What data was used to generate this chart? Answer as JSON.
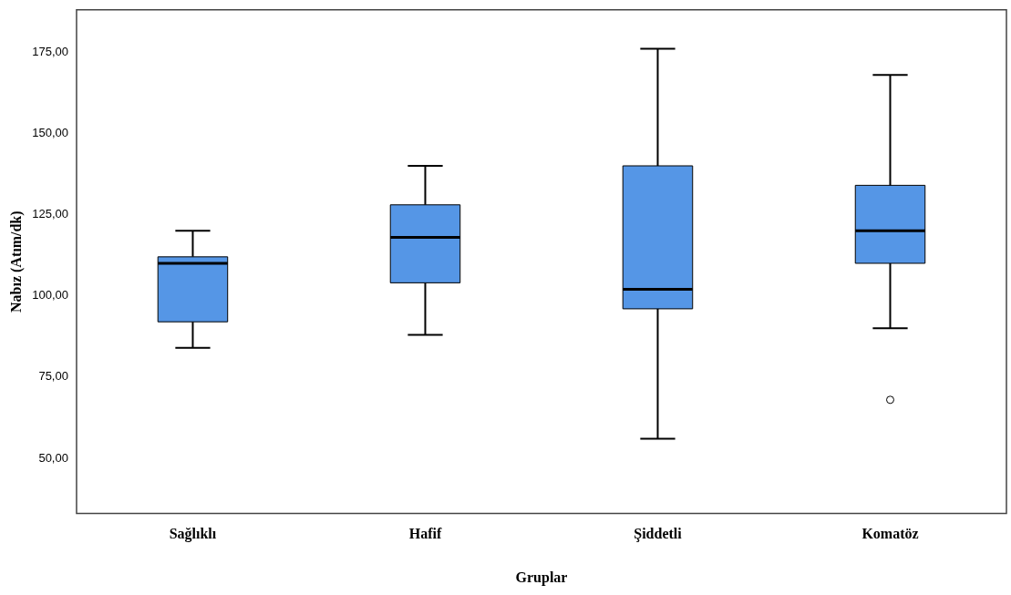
{
  "chart_data": {
    "type": "box",
    "xlabel": "Gruplar",
    "ylabel": "Nabız (Atım/dk)",
    "categories": [
      "Sağlıklı",
      "Hafif",
      "Şiddetli",
      "Komatöz"
    ],
    "color": "#5596e6",
    "boxes": [
      {
        "low": 84,
        "q1": 92,
        "median": 110,
        "q3": 112,
        "high": 120
      },
      {
        "low": 88,
        "q1": 104,
        "median": 118,
        "q3": 128,
        "high": 140
      },
      {
        "low": 56,
        "q1": 96,
        "median": 102,
        "q3": 140,
        "high": 176
      },
      {
        "low": 90,
        "q1": 110,
        "median": 120,
        "q3": 134,
        "high": 168,
        "outliers": [
          68
        ]
      }
    ],
    "ylim": [
      33,
      188
    ],
    "yticks": [
      {
        "value": 50,
        "label": "50,00"
      },
      {
        "value": 75,
        "label": "75,00"
      },
      {
        "value": 100,
        "label": "100,00"
      },
      {
        "value": 125,
        "label": "125,00"
      },
      {
        "value": 150,
        "label": "150,00"
      },
      {
        "value": 175,
        "label": "175,00"
      }
    ],
    "grid": false,
    "legend": false
  }
}
